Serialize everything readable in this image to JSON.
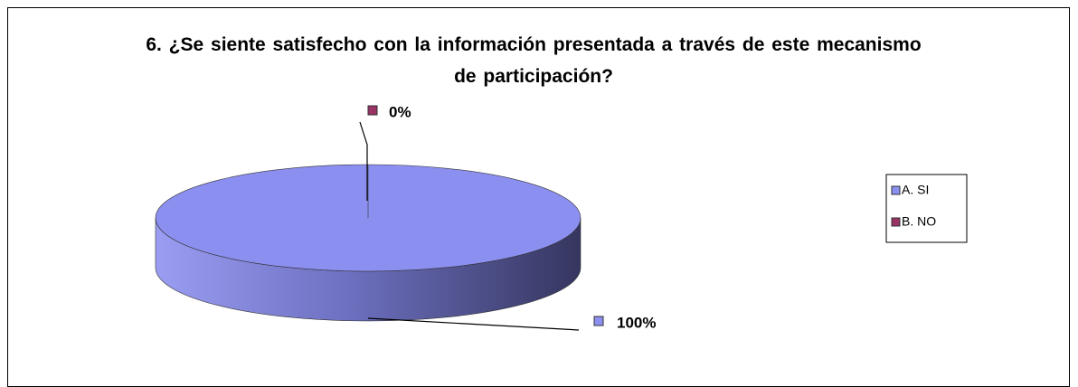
{
  "chart_data": {
    "type": "pie3d",
    "title": "6. ¿Se siente satisfecho con la información presentada a través de este mecanismo de participación?",
    "categories": [
      "A. SI",
      "B. NO"
    ],
    "values": [
      100,
      0
    ],
    "value_labels": [
      "100%",
      "0%"
    ],
    "colors": [
      "#8b8fef",
      "#993366"
    ],
    "legend": "right"
  }
}
